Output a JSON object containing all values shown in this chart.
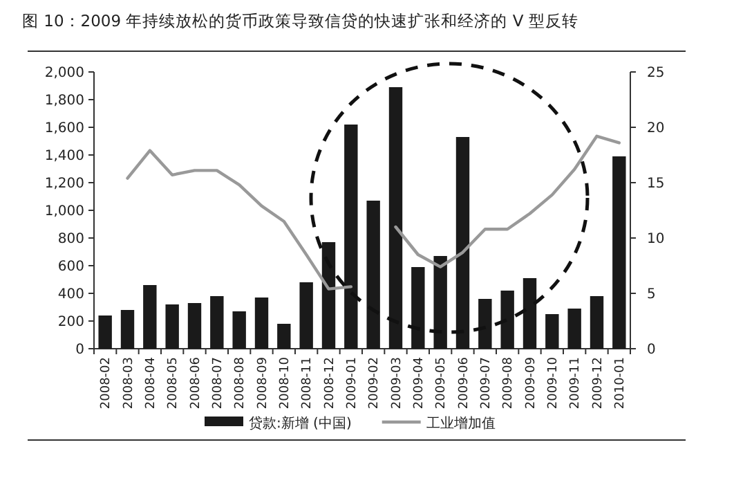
{
  "chart_data": {
    "type": "bar",
    "title": "图 10：2009 年持续放松的货币政策导致信贷的快速扩张和经济的 V 型反转",
    "categories": [
      "2008-02",
      "2008-03",
      "2008-04",
      "2008-05",
      "2008-06",
      "2008-07",
      "2008-08",
      "2008-09",
      "2008-10",
      "2008-11",
      "2008-12",
      "2009-01",
      "2009-02",
      "2009-03",
      "2009-04",
      "2009-05",
      "2009-06",
      "2009-07",
      "2009-08",
      "2009-09",
      "2009-10",
      "2009-11",
      "2009-12",
      "2010-01"
    ],
    "series": [
      {
        "name": "贷款:新增 (中国)",
        "color": "#1a1a1a",
        "values": [
          240,
          280,
          460,
          320,
          330,
          380,
          270,
          370,
          180,
          480,
          770,
          1620,
          1070,
          1890,
          590,
          670,
          1530,
          360,
          420,
          510,
          250,
          290,
          380,
          1390
        ]
      },
      {
        "name": "工业增加值",
        "type": "line",
        "axis": "y2",
        "color": "#999999",
        "values": [
          null,
          15.4,
          17.9,
          15.7,
          16.1,
          16.1,
          14.8,
          12.9,
          11.5,
          8.5,
          5.4,
          5.6,
          null,
          11.0,
          8.5,
          7.4,
          8.7,
          10.8,
          10.8,
          12.2,
          13.9,
          16.2,
          19.2,
          18.6
        ]
      }
    ],
    "ylim": [
      0,
      2000
    ],
    "yticks": [
      {
        "value": 0,
        "label": "0"
      },
      {
        "value": 200,
        "label": "200"
      },
      {
        "value": 400,
        "label": "400"
      },
      {
        "value": 600,
        "label": "600"
      },
      {
        "value": 800,
        "label": "800"
      },
      {
        "value": 1000,
        "label": "1,000"
      },
      {
        "value": 1200,
        "label": "1,200"
      },
      {
        "value": 1400,
        "label": "1,400"
      },
      {
        "value": 1600,
        "label": "1,600"
      },
      {
        "value": 1800,
        "label": "1,800"
      },
      {
        "value": 2000,
        "label": "2,000"
      }
    ],
    "y2lim": [
      0,
      25
    ],
    "y2ticks": [
      0,
      5,
      10,
      15,
      20,
      25
    ],
    "legend": "bottom",
    "grid": false
  }
}
